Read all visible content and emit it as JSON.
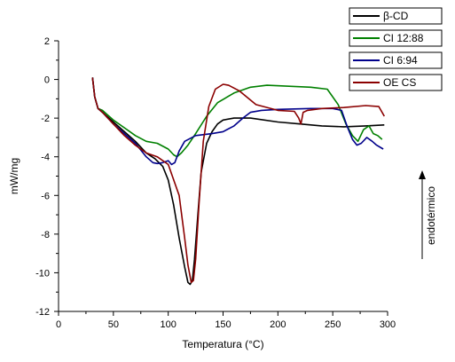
{
  "chart_data": {
    "type": "line",
    "title": "",
    "xlabel": "Temperatura (°C)",
    "ylabel": "mW/mg",
    "xlim": [
      0,
      300
    ],
    "ylim": [
      -12,
      2
    ],
    "xticks": [
      0,
      50,
      100,
      150,
      200,
      250,
      300
    ],
    "yticks": [
      2,
      0,
      -2,
      -4,
      -6,
      -8,
      -10,
      -12
    ],
    "grid": false,
    "legend_position": "top-right",
    "annotation": "endotérmico",
    "series": [
      {
        "name": "β-CD",
        "color": "#000000",
        "x": [
          31,
          33,
          36,
          40,
          50,
          60,
          70,
          80,
          88,
          95,
          100,
          105,
          110,
          115,
          118,
          120,
          122,
          124,
          127,
          130,
          135,
          140,
          145,
          150,
          160,
          175,
          200,
          220,
          240,
          260,
          280,
          297
        ],
        "y": [
          0.1,
          -0.9,
          -1.5,
          -1.7,
          -2.2,
          -2.7,
          -3.2,
          -3.8,
          -4.1,
          -4.5,
          -5.2,
          -6.5,
          -8.2,
          -9.7,
          -10.5,
          -10.6,
          -10.4,
          -9.3,
          -7.0,
          -4.8,
          -3.3,
          -2.7,
          -2.3,
          -2.1,
          -2.0,
          -2.0,
          -2.2,
          -2.3,
          -2.4,
          -2.45,
          -2.4,
          -2.35
        ]
      },
      {
        "name": "CI 12:88",
        "color": "#008000",
        "x": [
          31,
          33,
          36,
          40,
          50,
          60,
          70,
          80,
          90,
          100,
          105,
          108,
          112,
          118,
          125,
          135,
          145,
          160,
          175,
          190,
          210,
          230,
          245,
          255,
          262,
          268,
          273,
          278,
          283,
          287,
          291,
          295
        ],
        "y": [
          0.1,
          -0.9,
          -1.5,
          -1.6,
          -2.1,
          -2.5,
          -2.9,
          -3.2,
          -3.3,
          -3.6,
          -3.9,
          -4.0,
          -3.8,
          -3.4,
          -2.8,
          -1.9,
          -1.2,
          -0.7,
          -0.4,
          -0.3,
          -0.35,
          -0.4,
          -0.5,
          -1.3,
          -2.3,
          -2.9,
          -3.2,
          -2.6,
          -2.4,
          -2.8,
          -2.9,
          -3.1
        ]
      },
      {
        "name": "CI 6:94",
        "color": "#00008B",
        "x": [
          31,
          33,
          36,
          40,
          50,
          60,
          70,
          80,
          86,
          90,
          95,
          100,
          103,
          106,
          110,
          115,
          125,
          140,
          150,
          160,
          168,
          175,
          185,
          200,
          230,
          250,
          258,
          263,
          268,
          272,
          276,
          281,
          286,
          290,
          296
        ],
        "y": [
          0.1,
          -0.9,
          -1.5,
          -1.7,
          -2.3,
          -2.8,
          -3.3,
          -4.0,
          -4.3,
          -4.35,
          -4.3,
          -4.2,
          -4.4,
          -4.3,
          -3.7,
          -3.2,
          -2.9,
          -2.8,
          -2.7,
          -2.4,
          -2.0,
          -1.7,
          -1.6,
          -1.55,
          -1.5,
          -1.5,
          -1.6,
          -2.4,
          -3.1,
          -3.4,
          -3.3,
          -3.0,
          -3.2,
          -3.4,
          -3.6
        ]
      },
      {
        "name": "OE CS",
        "color": "#8B0000",
        "x": [
          31,
          33,
          36,
          40,
          50,
          60,
          70,
          80,
          90,
          100,
          110,
          115,
          118,
          121,
          123,
          125,
          128,
          132,
          137,
          143,
          150,
          155,
          165,
          180,
          200,
          215,
          219,
          221,
          223,
          227,
          240,
          260,
          280,
          292,
          297
        ],
        "y": [
          0.1,
          -0.9,
          -1.5,
          -1.7,
          -2.3,
          -2.9,
          -3.4,
          -3.8,
          -4.0,
          -4.4,
          -6.0,
          -8.2,
          -9.6,
          -10.5,
          -10.4,
          -9.3,
          -6.5,
          -3.2,
          -1.4,
          -0.5,
          -0.25,
          -0.3,
          -0.6,
          -1.3,
          -1.6,
          -1.65,
          -2.0,
          -2.3,
          -1.7,
          -1.6,
          -1.5,
          -1.45,
          -1.35,
          -1.4,
          -1.9
        ]
      }
    ]
  }
}
